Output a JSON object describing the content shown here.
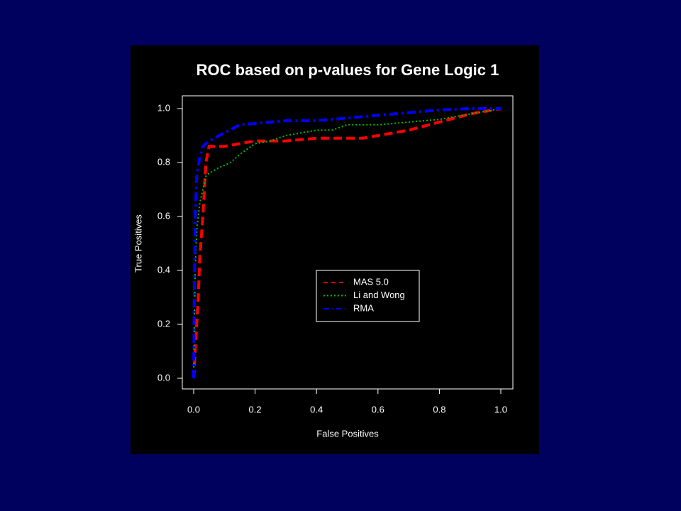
{
  "chart_data": {
    "type": "line",
    "title": "ROC based on p-values for Gene Logic 1",
    "x_label": "False Positives",
    "y_label": "True Positives",
    "xlim": [
      0,
      1
    ],
    "ylim": [
      0,
      1
    ],
    "xticks": [
      {
        "value": 0,
        "label": "0.0"
      },
      0.2,
      0.4,
      0.6,
      0.8,
      {
        "value": 1,
        "label": "1.0"
      }
    ],
    "yticks": [
      {
        "value": 0,
        "label": "0.0"
      },
      0.2,
      0.4,
      0.6,
      0.8,
      {
        "value": 1,
        "label": "1.0"
      }
    ],
    "series": [
      {
        "name": "MAS 5.0",
        "color": "#ff0000",
        "dash": "dashed",
        "x": [
          0,
          0.005,
          0.01,
          0.015,
          0.02,
          0.03,
          0.04,
          0.05,
          0.07,
          0.1,
          0.15,
          0.2,
          0.3,
          0.4,
          0.5,
          0.55,
          0.6,
          0.7,
          0.8,
          0.9,
          0.95,
          1.0
        ],
        "values": [
          0,
          0.1,
          0.2,
          0.3,
          0.45,
          0.6,
          0.8,
          0.86,
          0.86,
          0.86,
          0.87,
          0.88,
          0.88,
          0.89,
          0.89,
          0.89,
          0.9,
          0.92,
          0.95,
          0.98,
          0.99,
          1.0
        ]
      },
      {
        "name": "Li and Wong",
        "color": "#00c000",
        "dash": "dotted",
        "x": [
          0,
          0.002,
          0.005,
          0.01,
          0.02,
          0.03,
          0.04,
          0.05,
          0.08,
          0.12,
          0.15,
          0.2,
          0.25,
          0.3,
          0.35,
          0.4,
          0.45,
          0.5,
          0.6,
          0.7,
          0.8,
          0.9,
          1.0
        ],
        "values": [
          0,
          0.2,
          0.4,
          0.55,
          0.65,
          0.7,
          0.75,
          0.76,
          0.78,
          0.8,
          0.83,
          0.87,
          0.88,
          0.9,
          0.91,
          0.92,
          0.92,
          0.94,
          0.94,
          0.95,
          0.96,
          0.98,
          1.0
        ]
      },
      {
        "name": "RMA",
        "color": "#0000ff",
        "dash": "dashdot",
        "x": [
          0,
          0.002,
          0.005,
          0.01,
          0.02,
          0.03,
          0.05,
          0.1,
          0.15,
          0.2,
          0.3,
          0.4,
          0.5,
          0.6,
          0.7,
          0.8,
          0.9,
          1.0
        ],
        "values": [
          0,
          0.3,
          0.6,
          0.75,
          0.82,
          0.86,
          0.88,
          0.91,
          0.94,
          0.945,
          0.955,
          0.955,
          0.965,
          0.975,
          0.985,
          0.995,
          1.0,
          1.0
        ]
      }
    ]
  }
}
